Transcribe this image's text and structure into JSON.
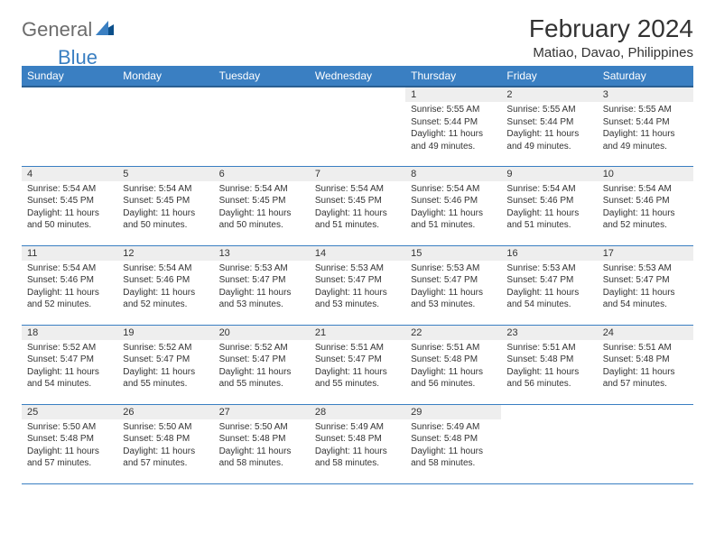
{
  "logo": {
    "text1": "General",
    "text2": "Blue"
  },
  "header": {
    "month_title": "February 2024",
    "location": "Matiao, Davao, Philippines"
  },
  "weekdays": [
    "Sunday",
    "Monday",
    "Tuesday",
    "Wednesday",
    "Thursday",
    "Friday",
    "Saturday"
  ],
  "colors": {
    "header_bg": "#3a7fc2",
    "header_border": "#2a5f92",
    "daynum_bg": "#eeeeee",
    "row_divider": "#3a7fc2",
    "text": "#333333",
    "logo_gray": "#6c6c6c",
    "logo_blue": "#3a7fc2"
  },
  "weeks": [
    [
      {
        "day": "",
        "sunrise": "",
        "sunset": "",
        "daylight": ""
      },
      {
        "day": "",
        "sunrise": "",
        "sunset": "",
        "daylight": ""
      },
      {
        "day": "",
        "sunrise": "",
        "sunset": "",
        "daylight": ""
      },
      {
        "day": "",
        "sunrise": "",
        "sunset": "",
        "daylight": ""
      },
      {
        "day": "1",
        "sunrise": "Sunrise: 5:55 AM",
        "sunset": "Sunset: 5:44 PM",
        "daylight": "Daylight: 11 hours and 49 minutes."
      },
      {
        "day": "2",
        "sunrise": "Sunrise: 5:55 AM",
        "sunset": "Sunset: 5:44 PM",
        "daylight": "Daylight: 11 hours and 49 minutes."
      },
      {
        "day": "3",
        "sunrise": "Sunrise: 5:55 AM",
        "sunset": "Sunset: 5:44 PM",
        "daylight": "Daylight: 11 hours and 49 minutes."
      }
    ],
    [
      {
        "day": "4",
        "sunrise": "Sunrise: 5:54 AM",
        "sunset": "Sunset: 5:45 PM",
        "daylight": "Daylight: 11 hours and 50 minutes."
      },
      {
        "day": "5",
        "sunrise": "Sunrise: 5:54 AM",
        "sunset": "Sunset: 5:45 PM",
        "daylight": "Daylight: 11 hours and 50 minutes."
      },
      {
        "day": "6",
        "sunrise": "Sunrise: 5:54 AM",
        "sunset": "Sunset: 5:45 PM",
        "daylight": "Daylight: 11 hours and 50 minutes."
      },
      {
        "day": "7",
        "sunrise": "Sunrise: 5:54 AM",
        "sunset": "Sunset: 5:45 PM",
        "daylight": "Daylight: 11 hours and 51 minutes."
      },
      {
        "day": "8",
        "sunrise": "Sunrise: 5:54 AM",
        "sunset": "Sunset: 5:46 PM",
        "daylight": "Daylight: 11 hours and 51 minutes."
      },
      {
        "day": "9",
        "sunrise": "Sunrise: 5:54 AM",
        "sunset": "Sunset: 5:46 PM",
        "daylight": "Daylight: 11 hours and 51 minutes."
      },
      {
        "day": "10",
        "sunrise": "Sunrise: 5:54 AM",
        "sunset": "Sunset: 5:46 PM",
        "daylight": "Daylight: 11 hours and 52 minutes."
      }
    ],
    [
      {
        "day": "11",
        "sunrise": "Sunrise: 5:54 AM",
        "sunset": "Sunset: 5:46 PM",
        "daylight": "Daylight: 11 hours and 52 minutes."
      },
      {
        "day": "12",
        "sunrise": "Sunrise: 5:54 AM",
        "sunset": "Sunset: 5:46 PM",
        "daylight": "Daylight: 11 hours and 52 minutes."
      },
      {
        "day": "13",
        "sunrise": "Sunrise: 5:53 AM",
        "sunset": "Sunset: 5:47 PM",
        "daylight": "Daylight: 11 hours and 53 minutes."
      },
      {
        "day": "14",
        "sunrise": "Sunrise: 5:53 AM",
        "sunset": "Sunset: 5:47 PM",
        "daylight": "Daylight: 11 hours and 53 minutes."
      },
      {
        "day": "15",
        "sunrise": "Sunrise: 5:53 AM",
        "sunset": "Sunset: 5:47 PM",
        "daylight": "Daylight: 11 hours and 53 minutes."
      },
      {
        "day": "16",
        "sunrise": "Sunrise: 5:53 AM",
        "sunset": "Sunset: 5:47 PM",
        "daylight": "Daylight: 11 hours and 54 minutes."
      },
      {
        "day": "17",
        "sunrise": "Sunrise: 5:53 AM",
        "sunset": "Sunset: 5:47 PM",
        "daylight": "Daylight: 11 hours and 54 minutes."
      }
    ],
    [
      {
        "day": "18",
        "sunrise": "Sunrise: 5:52 AM",
        "sunset": "Sunset: 5:47 PM",
        "daylight": "Daylight: 11 hours and 54 minutes."
      },
      {
        "day": "19",
        "sunrise": "Sunrise: 5:52 AM",
        "sunset": "Sunset: 5:47 PM",
        "daylight": "Daylight: 11 hours and 55 minutes."
      },
      {
        "day": "20",
        "sunrise": "Sunrise: 5:52 AM",
        "sunset": "Sunset: 5:47 PM",
        "daylight": "Daylight: 11 hours and 55 minutes."
      },
      {
        "day": "21",
        "sunrise": "Sunrise: 5:51 AM",
        "sunset": "Sunset: 5:47 PM",
        "daylight": "Daylight: 11 hours and 55 minutes."
      },
      {
        "day": "22",
        "sunrise": "Sunrise: 5:51 AM",
        "sunset": "Sunset: 5:48 PM",
        "daylight": "Daylight: 11 hours and 56 minutes."
      },
      {
        "day": "23",
        "sunrise": "Sunrise: 5:51 AM",
        "sunset": "Sunset: 5:48 PM",
        "daylight": "Daylight: 11 hours and 56 minutes."
      },
      {
        "day": "24",
        "sunrise": "Sunrise: 5:51 AM",
        "sunset": "Sunset: 5:48 PM",
        "daylight": "Daylight: 11 hours and 57 minutes."
      }
    ],
    [
      {
        "day": "25",
        "sunrise": "Sunrise: 5:50 AM",
        "sunset": "Sunset: 5:48 PM",
        "daylight": "Daylight: 11 hours and 57 minutes."
      },
      {
        "day": "26",
        "sunrise": "Sunrise: 5:50 AM",
        "sunset": "Sunset: 5:48 PM",
        "daylight": "Daylight: 11 hours and 57 minutes."
      },
      {
        "day": "27",
        "sunrise": "Sunrise: 5:50 AM",
        "sunset": "Sunset: 5:48 PM",
        "daylight": "Daylight: 11 hours and 58 minutes."
      },
      {
        "day": "28",
        "sunrise": "Sunrise: 5:49 AM",
        "sunset": "Sunset: 5:48 PM",
        "daylight": "Daylight: 11 hours and 58 minutes."
      },
      {
        "day": "29",
        "sunrise": "Sunrise: 5:49 AM",
        "sunset": "Sunset: 5:48 PM",
        "daylight": "Daylight: 11 hours and 58 minutes."
      },
      {
        "day": "",
        "sunrise": "",
        "sunset": "",
        "daylight": ""
      },
      {
        "day": "",
        "sunrise": "",
        "sunset": "",
        "daylight": ""
      }
    ]
  ]
}
